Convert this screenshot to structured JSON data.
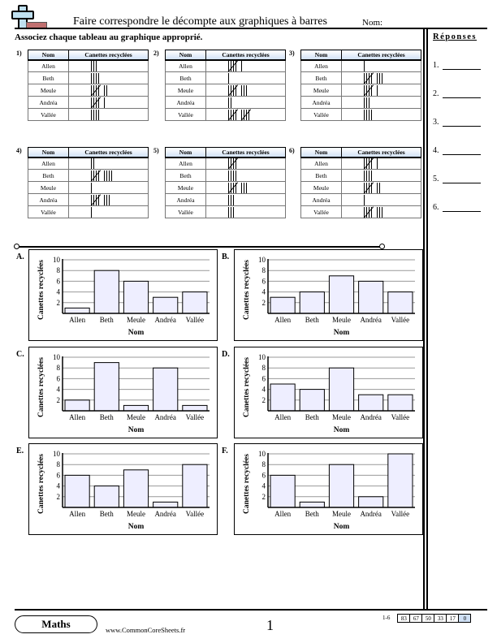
{
  "header": {
    "title": "Faire correspondre le décompte aux graphiques à barres",
    "name_label": "Nom:",
    "instructions": "Associez chaque tableau au graphique approprié."
  },
  "answers": {
    "title": "Réponses",
    "items": [
      "1.",
      "2.",
      "3.",
      "4.",
      "5.",
      "6."
    ]
  },
  "table_headers": [
    "Nom",
    "Canettes recyclées"
  ],
  "tables": [
    {
      "label": "1)",
      "rows": [
        {
          "name": "Allen",
          "count": 3
        },
        {
          "name": "Beth",
          "count": 4
        },
        {
          "name": "Meule",
          "count": 7
        },
        {
          "name": "Andréa",
          "count": 6
        },
        {
          "name": "Vallée",
          "count": 4
        }
      ]
    },
    {
      "label": "2)",
      "rows": [
        {
          "name": "Allen",
          "count": 6
        },
        {
          "name": "Beth",
          "count": 1
        },
        {
          "name": "Meule",
          "count": 8
        },
        {
          "name": "Andréa",
          "count": 2
        },
        {
          "name": "Vallée",
          "count": 10
        }
      ]
    },
    {
      "label": "3)",
      "rows": [
        {
          "name": "Allen",
          "count": 1
        },
        {
          "name": "Beth",
          "count": 8
        },
        {
          "name": "Meule",
          "count": 6
        },
        {
          "name": "Andréa",
          "count": 3
        },
        {
          "name": "Vallée",
          "count": 4
        }
      ]
    },
    {
      "label": "4)",
      "rows": [
        {
          "name": "Allen",
          "count": 2
        },
        {
          "name": "Beth",
          "count": 9
        },
        {
          "name": "Meule",
          "count": 1
        },
        {
          "name": "Andréa",
          "count": 8
        },
        {
          "name": "Vallée",
          "count": 1
        }
      ]
    },
    {
      "label": "5)",
      "rows": [
        {
          "name": "Allen",
          "count": 5
        },
        {
          "name": "Beth",
          "count": 4
        },
        {
          "name": "Meule",
          "count": 8
        },
        {
          "name": "Andréa",
          "count": 3
        },
        {
          "name": "Vallée",
          "count": 3
        }
      ]
    },
    {
      "label": "6)",
      "rows": [
        {
          "name": "Allen",
          "count": 6
        },
        {
          "name": "Beth",
          "count": 4
        },
        {
          "name": "Meule",
          "count": 7
        },
        {
          "name": "Andréa",
          "count": 1
        },
        {
          "name": "Vallée",
          "count": 8
        }
      ]
    }
  ],
  "chart_data": [
    {
      "label": "A.",
      "type": "bar",
      "categories": [
        "Allen",
        "Beth",
        "Meule",
        "Andréa",
        "Vallée"
      ],
      "values": [
        1,
        8,
        6,
        3,
        4
      ],
      "xlabel": "Nom",
      "ylabel": "Canettes recyclées",
      "yticks": [
        2,
        4,
        6,
        8,
        10
      ],
      "ylim": [
        0,
        10
      ],
      "bar_color": "#eeeeff"
    },
    {
      "label": "B.",
      "type": "bar",
      "categories": [
        "Allen",
        "Beth",
        "Meule",
        "Andréa",
        "Vallée"
      ],
      "values": [
        3,
        4,
        7,
        6,
        4
      ],
      "xlabel": "Nom",
      "ylabel": "Canettes recyclées",
      "yticks": [
        2,
        4,
        6,
        8,
        10
      ],
      "ylim": [
        0,
        10
      ],
      "bar_color": "#eeeeff"
    },
    {
      "label": "C.",
      "type": "bar",
      "categories": [
        "Allen",
        "Beth",
        "Meule",
        "Andréa",
        "Vallée"
      ],
      "values": [
        2,
        9,
        1,
        8,
        1
      ],
      "xlabel": "Nom",
      "ylabel": "Canettes recyclées",
      "yticks": [
        2,
        4,
        6,
        8,
        10
      ],
      "ylim": [
        0,
        10
      ],
      "bar_color": "#eeeeff"
    },
    {
      "label": "D.",
      "type": "bar",
      "categories": [
        "Allen",
        "Beth",
        "Meule",
        "Andréa",
        "Vallée"
      ],
      "values": [
        5,
        4,
        8,
        3,
        3
      ],
      "xlabel": "Nom",
      "ylabel": "Canettes recyclées",
      "yticks": [
        2,
        4,
        6,
        8,
        10
      ],
      "ylim": [
        0,
        10
      ],
      "bar_color": "#eeeeff"
    },
    {
      "label": "E.",
      "type": "bar",
      "categories": [
        "Allen",
        "Beth",
        "Meule",
        "Andréa",
        "Vallée"
      ],
      "values": [
        6,
        4,
        7,
        1,
        8
      ],
      "xlabel": "Nom",
      "ylabel": "Canettes recyclées",
      "yticks": [
        2,
        4,
        6,
        8,
        10
      ],
      "ylim": [
        0,
        10
      ],
      "bar_color": "#eeeeff"
    },
    {
      "label": "F.",
      "type": "bar",
      "categories": [
        "Allen",
        "Beth",
        "Meule",
        "Andréa",
        "Vallée"
      ],
      "values": [
        6,
        1,
        8,
        2,
        10
      ],
      "xlabel": "Nom",
      "ylabel": "Canettes recyclées",
      "yticks": [
        2,
        4,
        6,
        8,
        10
      ],
      "ylim": [
        0,
        10
      ],
      "bar_color": "#eeeeff"
    }
  ],
  "footer": {
    "subject": "Maths",
    "url": "www.CommonCoreSheets.fr",
    "page": "1",
    "score_label": "1-6",
    "scores": [
      "83",
      "67",
      "50",
      "33",
      "17",
      "0"
    ]
  }
}
